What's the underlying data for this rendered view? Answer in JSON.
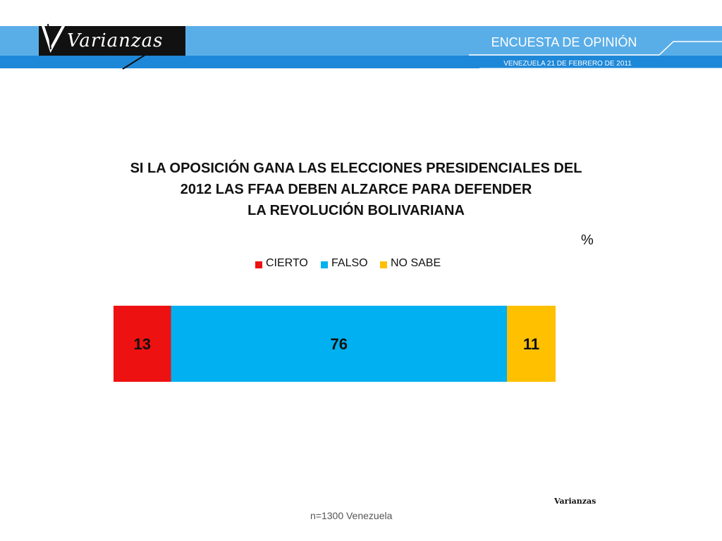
{
  "header": {
    "logo_text": "Varianzas",
    "title": "ENCUESTA DE OPINIÓN",
    "date": "VENEZUELA  21 DE  FEBRERO DE 2011",
    "band_light": "#5aaee8",
    "band_dark": "#1e88d8"
  },
  "chart_data": {
    "type": "bar",
    "orientation": "horizontal-stacked",
    "title": "SI LA OPOSICIÓN GANA LAS ELECCIONES PRESIDENCIALES DEL 2012 LAS FFAA DEBEN ALZARCE PARA DEFENDER LA REVOLUCIÓN BOLIVARIANA",
    "title_lines": [
      "SI LA OPOSICIÓN GANA LAS ELECCIONES PRESIDENCIALES DEL",
      "2012 LAS FFAA DEBEN ALZARCE PARA DEFENDER",
      "LA REVOLUCIÓN BOLIVARIANA"
    ],
    "unit": "%",
    "legend_position": "top",
    "series": [
      {
        "name": "CIERTO",
        "value": 13,
        "color": "#ee1111"
      },
      {
        "name": "FALSO",
        "value": 76,
        "color": "#00b0f0"
      },
      {
        "name": "NO SABE",
        "value": 11,
        "color": "#ffc000"
      }
    ],
    "total": 100
  },
  "footer": {
    "source": "Varianzas",
    "sample": "n=1300  Venezuela"
  }
}
